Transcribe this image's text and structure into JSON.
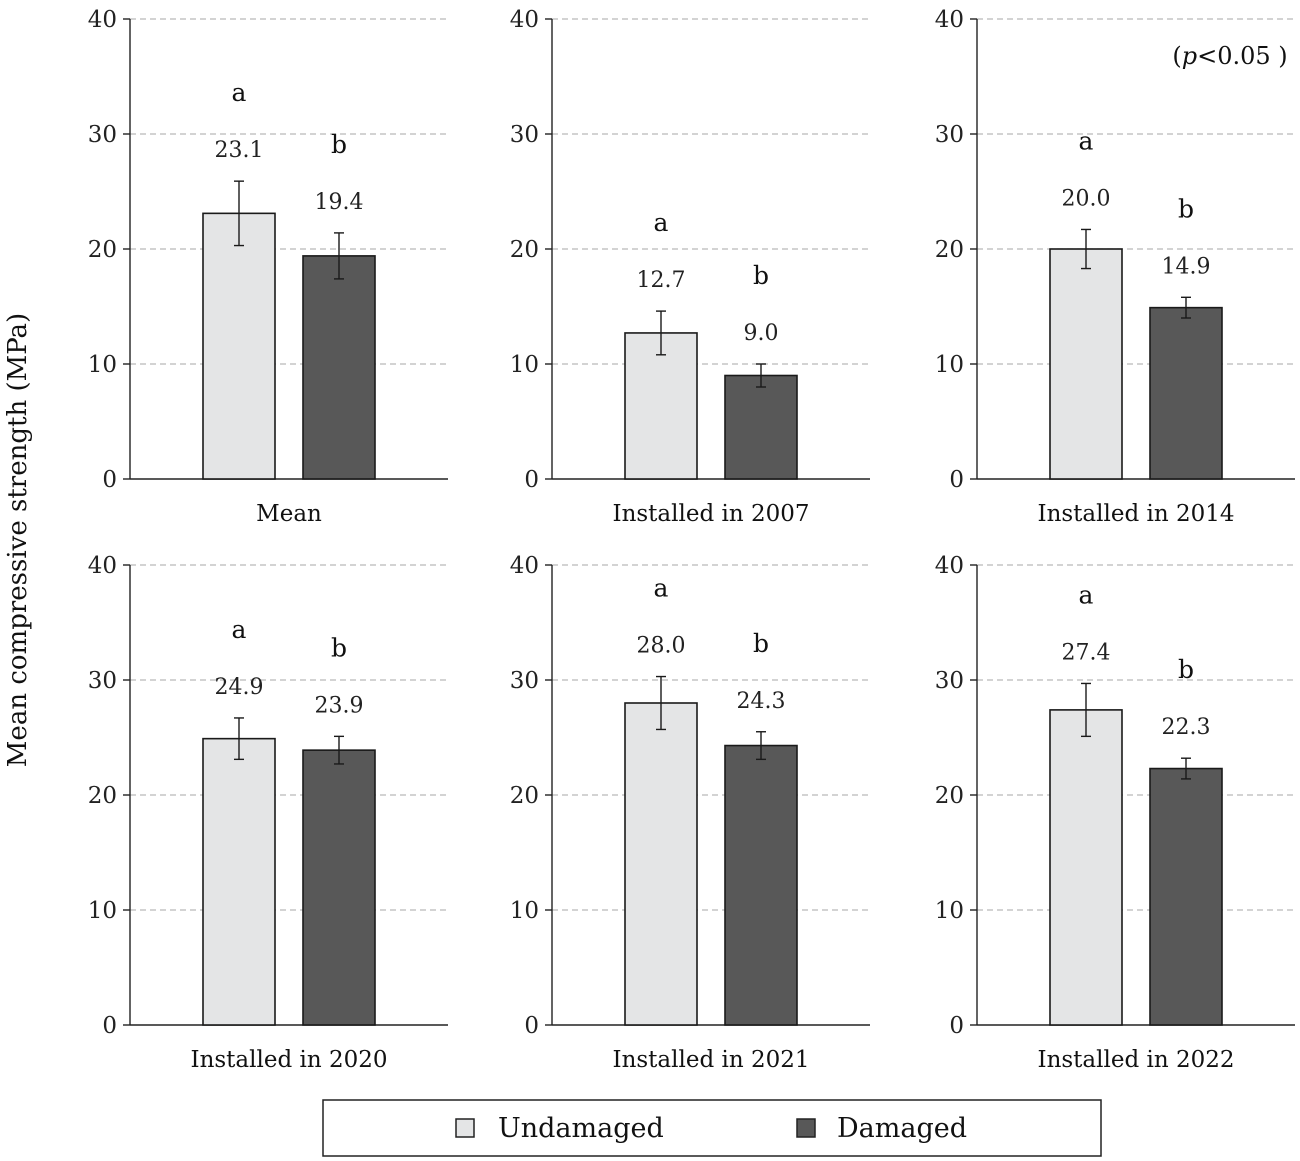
{
  "chart_data": {
    "type": "bar",
    "ylabel": "Mean compressive strength (MPa)",
    "ylim": [
      0,
      40
    ],
    "yticks": [
      0,
      10,
      20,
      30,
      40
    ],
    "grid": "horizontal dashed",
    "significance_note": {
      "prefix": "(",
      "italic": "p",
      "rest": "<0.05 )"
    },
    "legend": {
      "position": "bottom-center",
      "items": [
        {
          "name": "Undamaged",
          "color": "#e4e5e6"
        },
        {
          "name": "Damaged",
          "color": "#585858"
        }
      ]
    },
    "panels": [
      {
        "title": "Mean",
        "bars": [
          {
            "series": "Undamaged",
            "value": 23.1,
            "label": "23.1",
            "err": 2.8,
            "letter": "a"
          },
          {
            "series": "Damaged",
            "value": 19.4,
            "label": "19.4",
            "err": 2.0,
            "letter": "b"
          }
        ]
      },
      {
        "title": "Installed in 2007",
        "bars": [
          {
            "series": "Undamaged",
            "value": 12.7,
            "label": "12.7",
            "err": 1.9,
            "letter": "a"
          },
          {
            "series": "Damaged",
            "value": 9.0,
            "label": "9.0",
            "err": 1.0,
            "letter": "b"
          }
        ]
      },
      {
        "title": "Installed in 2014",
        "bars": [
          {
            "series": "Undamaged",
            "value": 20.0,
            "label": "20.0",
            "err": 1.7,
            "letter": "a"
          },
          {
            "series": "Damaged",
            "value": 14.9,
            "label": "14.9",
            "err": 0.9,
            "letter": "b"
          }
        ]
      },
      {
        "title": "Installed in 2020",
        "bars": [
          {
            "series": "Undamaged",
            "value": 24.9,
            "label": "24.9",
            "err": 1.8,
            "letter": "a"
          },
          {
            "series": "Damaged",
            "value": 23.9,
            "label": "23.9",
            "err": 1.2,
            "letter": "b"
          }
        ]
      },
      {
        "title": "Installed in 2021",
        "bars": [
          {
            "series": "Undamaged",
            "value": 28.0,
            "label": "28.0",
            "err": 2.3,
            "letter": "a"
          },
          {
            "series": "Damaged",
            "value": 24.3,
            "label": "24.3",
            "err": 1.2,
            "letter": "b"
          }
        ]
      },
      {
        "title": "Installed in 2022",
        "bars": [
          {
            "series": "Undamaged",
            "value": 27.4,
            "label": "27.4",
            "err": 2.3,
            "letter": "a"
          },
          {
            "series": "Damaged",
            "value": 22.3,
            "label": "22.3",
            "err": 0.9,
            "letter": "b"
          }
        ]
      }
    ]
  }
}
